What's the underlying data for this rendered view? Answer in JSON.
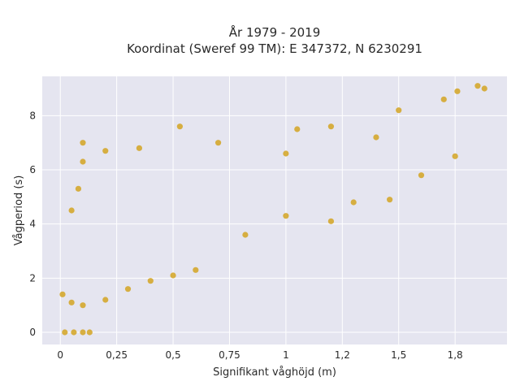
{
  "chart_data": {
    "type": "scatter",
    "title_line1": "År 1979 - 2019",
    "title_line2": "Koordinat (Sweref 99 TM): E 347372, N 6230291",
    "xlabel": "Signifikant våghöjd (m)",
    "ylabel": "Vågperiod (s)",
    "xlim": [
      -0.08,
      1.98
    ],
    "ylim": [
      -0.45,
      9.45
    ],
    "x_ticks": [
      0,
      0.25,
      0.5,
      0.75,
      1,
      1.25,
      1.5,
      1.75
    ],
    "x_tick_labels": [
      "0",
      "0,25",
      "0,5",
      "0,75",
      "1",
      "1,2",
      "1,5",
      "1,8"
    ],
    "y_ticks": [
      0,
      2,
      4,
      6,
      8
    ],
    "y_tick_labels": [
      "0",
      "2",
      "4",
      "6",
      "8"
    ],
    "grid": true,
    "legend": "none",
    "colors": {
      "marker": "#d4a422",
      "plot_bg": "#e5e5f0",
      "grid": "#ffffff"
    },
    "series": [
      {
        "values": [
          [
            0.02,
            0
          ],
          [
            0.06,
            0
          ],
          [
            0.1,
            0
          ],
          [
            0.13,
            0
          ],
          [
            0.01,
            1.4
          ],
          [
            0.05,
            1.1
          ],
          [
            0.1,
            1.0
          ],
          [
            0.2,
            1.2
          ],
          [
            0.3,
            1.6
          ],
          [
            0.4,
            1.9
          ],
          [
            0.5,
            2.1
          ],
          [
            0.6,
            2.3
          ],
          [
            0.05,
            4.5
          ],
          [
            0.08,
            5.3
          ],
          [
            0.1,
            6.3
          ],
          [
            0.1,
            7.0
          ],
          [
            0.2,
            6.7
          ],
          [
            0.35,
            6.8
          ],
          [
            0.53,
            7.6
          ],
          [
            0.7,
            7.0
          ],
          [
            1.05,
            7.5
          ],
          [
            1.2,
            7.6
          ],
          [
            1.5,
            8.2
          ],
          [
            1.7,
            8.6
          ],
          [
            1.76,
            8.9
          ],
          [
            1.85,
            9.1
          ],
          [
            1.88,
            9.0
          ],
          [
            0.82,
            3.6
          ],
          [
            1.0,
            4.3
          ],
          [
            1.2,
            4.1
          ],
          [
            1.3,
            4.8
          ],
          [
            1.46,
            4.9
          ],
          [
            1.6,
            5.8
          ],
          [
            1.75,
            6.5
          ],
          [
            1.0,
            6.6
          ],
          [
            1.4,
            7.2
          ]
        ]
      }
    ]
  }
}
